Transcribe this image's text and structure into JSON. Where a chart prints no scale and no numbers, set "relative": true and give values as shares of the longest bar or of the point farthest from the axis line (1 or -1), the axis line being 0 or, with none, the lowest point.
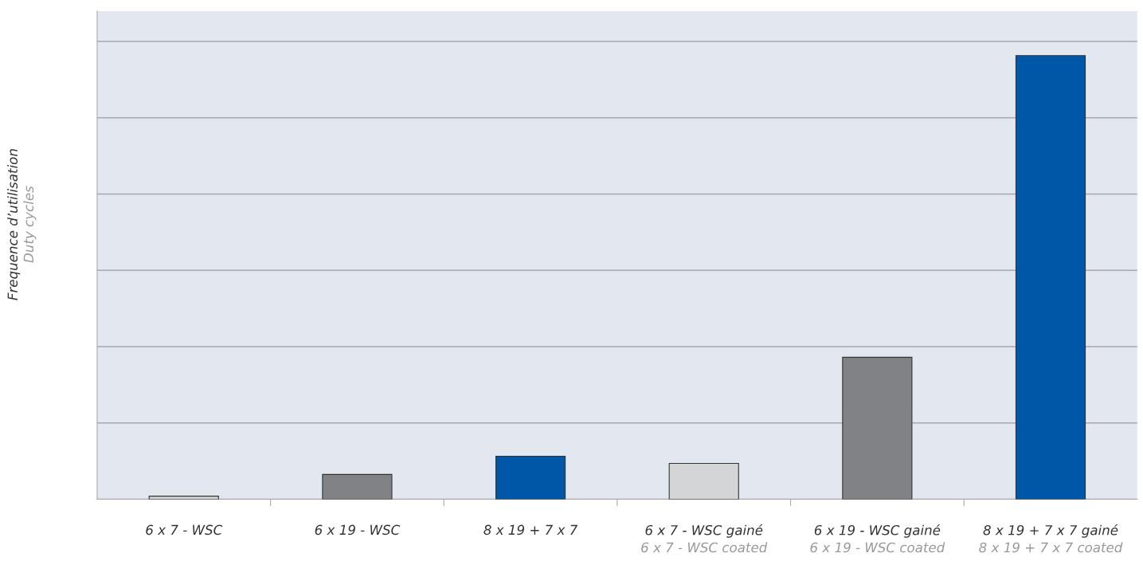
{
  "chart_data": {
    "type": "bar",
    "relative": true,
    "ylabel": "Frequence d’utilisation\nDuty cycles",
    "categories": [
      "6 x 7 - WSC",
      "6 x 19 - WSC",
      "8 x 19 + 7 x 7",
      "6 x 7 - WSC gainé\n6 x 7 - WSC coated",
      "6 x 19 - WSC gainé\n6 x 19 - WSC coated",
      "8 x 19 + 7 x 7 gainé\n8 x 19 + 7 x 7 coated"
    ],
    "values": [
      0.007,
      0.056,
      0.097,
      0.081,
      0.32,
      1
    ],
    "colors": [
      "#d4d5d7",
      "#808285",
      "#0057a8",
      "#d4d5d7",
      "#808285",
      "#0057a8"
    ],
    "grid": "y",
    "tick_labels": "x"
  }
}
